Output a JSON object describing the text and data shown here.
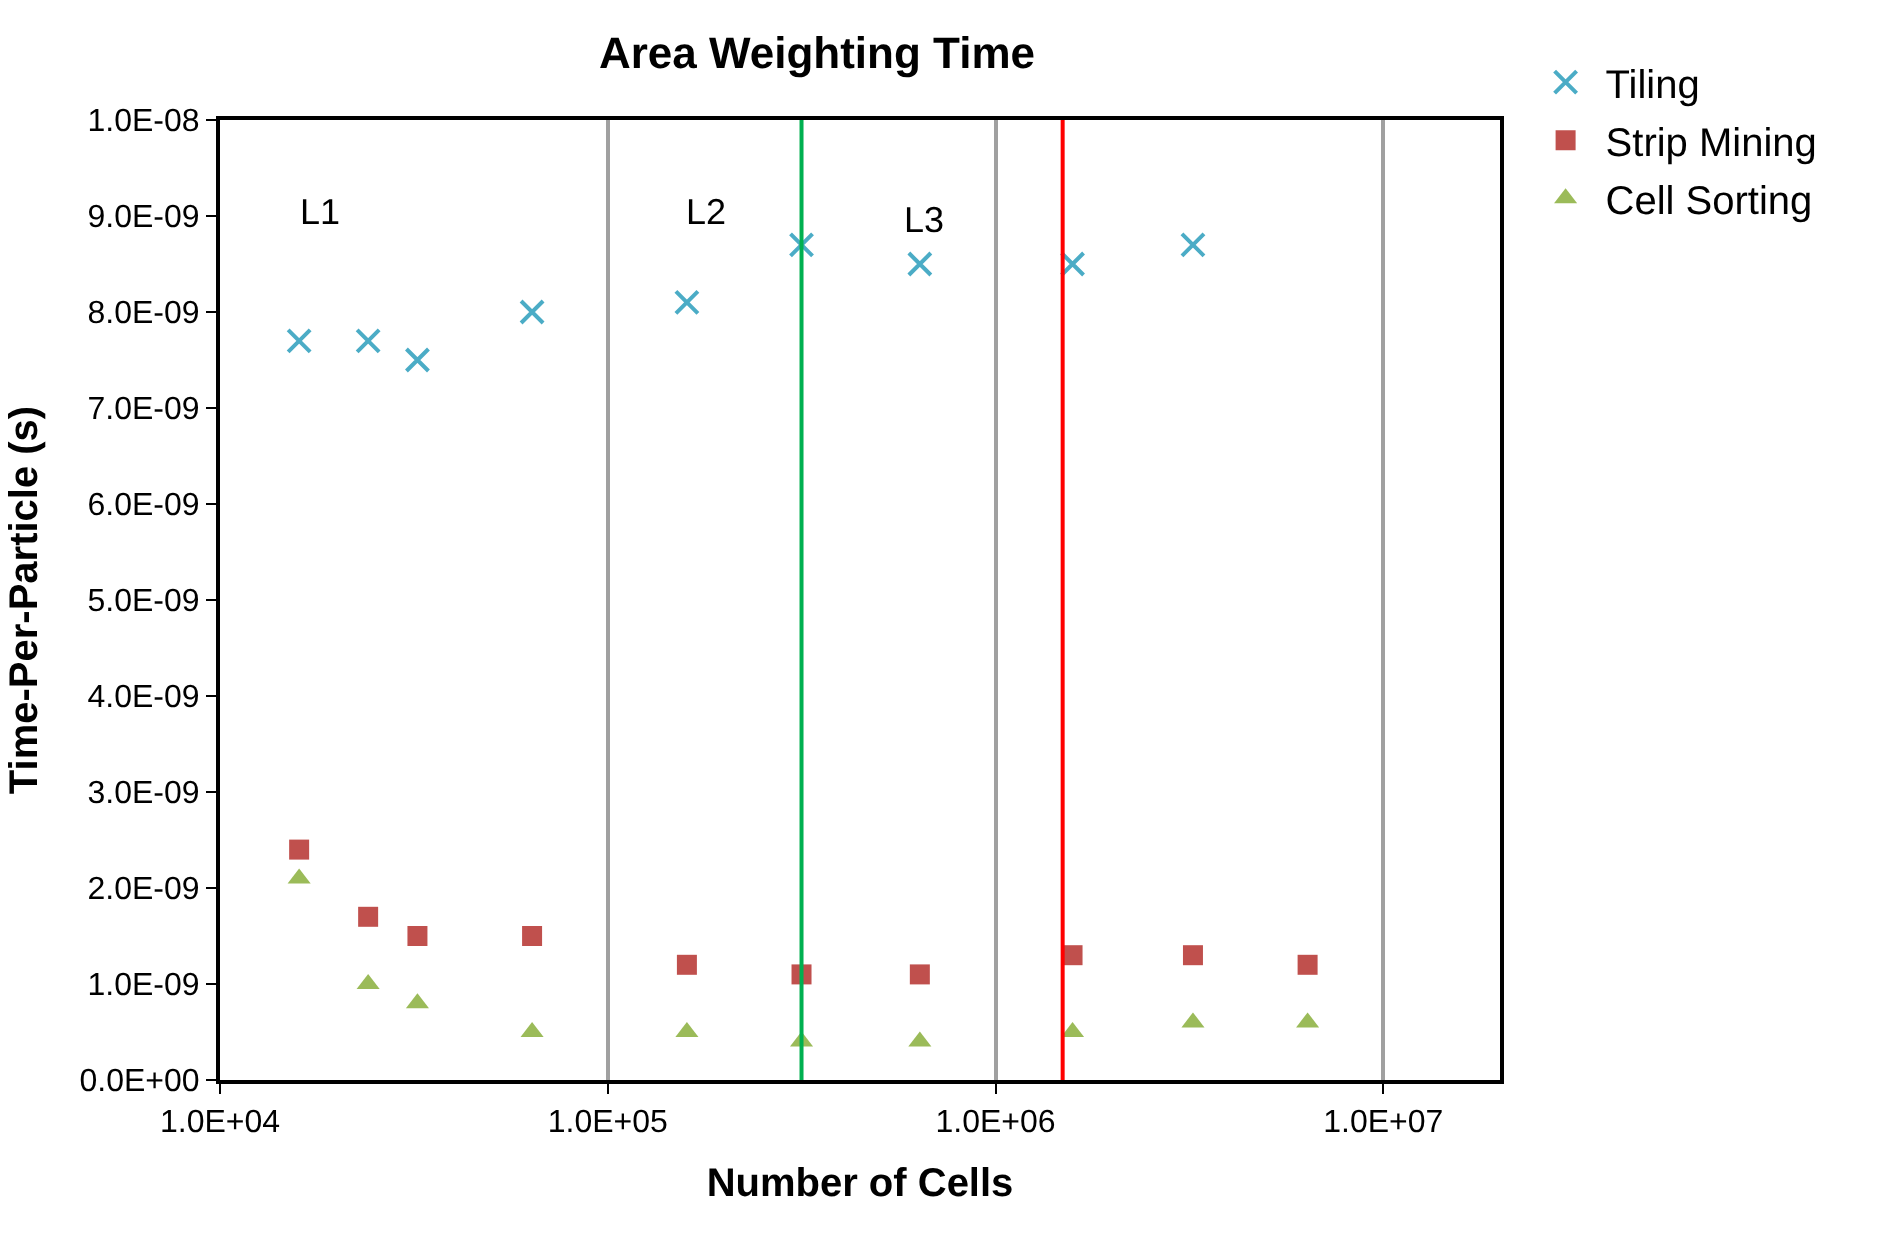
{
  "chart_data": {
    "type": "scatter",
    "title": "Area Weighting Time",
    "xlabel": "Number of Cells",
    "ylabel": "Time-Per-Particle (s)",
    "log": "x",
    "xlim": [
      10000,
      20000000
    ],
    "xticks": [
      {
        "value": 10000,
        "label": "1.0E+04"
      },
      {
        "value": 100000,
        "label": "1.0E+05"
      },
      {
        "value": 1000000,
        "label": "1.0E+06"
      },
      {
        "value": 10000000,
        "label": "1.0E+07"
      }
    ],
    "ylim": [
      0,
      1e-08
    ],
    "yticks": [
      {
        "value": 0,
        "label": "0.0E+00"
      },
      {
        "value": 1e-09,
        "label": "1.0E-09"
      },
      {
        "value": 2e-09,
        "label": "2.0E-09"
      },
      {
        "value": 3e-09,
        "label": "3.0E-09"
      },
      {
        "value": 4e-09,
        "label": "4.0E-09"
      },
      {
        "value": 5e-09,
        "label": "5.0E-09"
      },
      {
        "value": 6e-09,
        "label": "6.0E-09"
      },
      {
        "value": 7e-09,
        "label": "7.0E-09"
      },
      {
        "value": 8e-09,
        "label": "8.0E-09"
      },
      {
        "value": 9e-09,
        "label": "9.0E-09"
      },
      {
        "value": 1e-08,
        "label": "1.0E-08"
      }
    ],
    "grid": "x",
    "legend": "top right",
    "series": [
      {
        "name": "Tiling",
        "color": "#4bacc6",
        "marker": "cross",
        "x": [
          16000,
          24100,
          32300,
          63800,
          160000,
          316000,
          638000,
          1580000,
          3230000
        ],
        "values": [
          7.7e-09,
          7.7e-09,
          7.5e-09,
          8e-09,
          8.1e-09,
          8.7e-09,
          8.5e-09,
          8.5e-09,
          8.7e-09
        ]
      },
      {
        "name": "Strip Mining",
        "color": "#c0504d",
        "marker": "square",
        "x": [
          16000,
          24100,
          32300,
          63800,
          160000,
          316000,
          638000,
          1580000,
          3230000,
          6380000
        ],
        "values": [
          2.4e-09,
          1.7e-09,
          1.5e-09,
          1.5e-09,
          1.2e-09,
          1.1e-09,
          1.1e-09,
          1.3e-09,
          1.3e-09,
          1.2e-09
        ]
      },
      {
        "name": "Cell Sorting",
        "color": "#9bbb59",
        "marker": "triangle",
        "x": [
          16000,
          24100,
          32300,
          63800,
          160000,
          316000,
          638000,
          1580000,
          3230000,
          6380000
        ],
        "values": [
          2.1e-09,
          1e-09,
          8e-10,
          5e-10,
          5e-10,
          4e-10,
          4e-10,
          5e-10,
          6e-10,
          6e-10
        ]
      }
    ],
    "ref_lines": [
      {
        "axis": "x",
        "value": 316000,
        "color": "#00b050"
      },
      {
        "axis": "x",
        "value": 1490000,
        "color": "#ff0000"
      }
    ],
    "annotations": [
      "L1",
      "L2",
      "L3"
    ]
  }
}
